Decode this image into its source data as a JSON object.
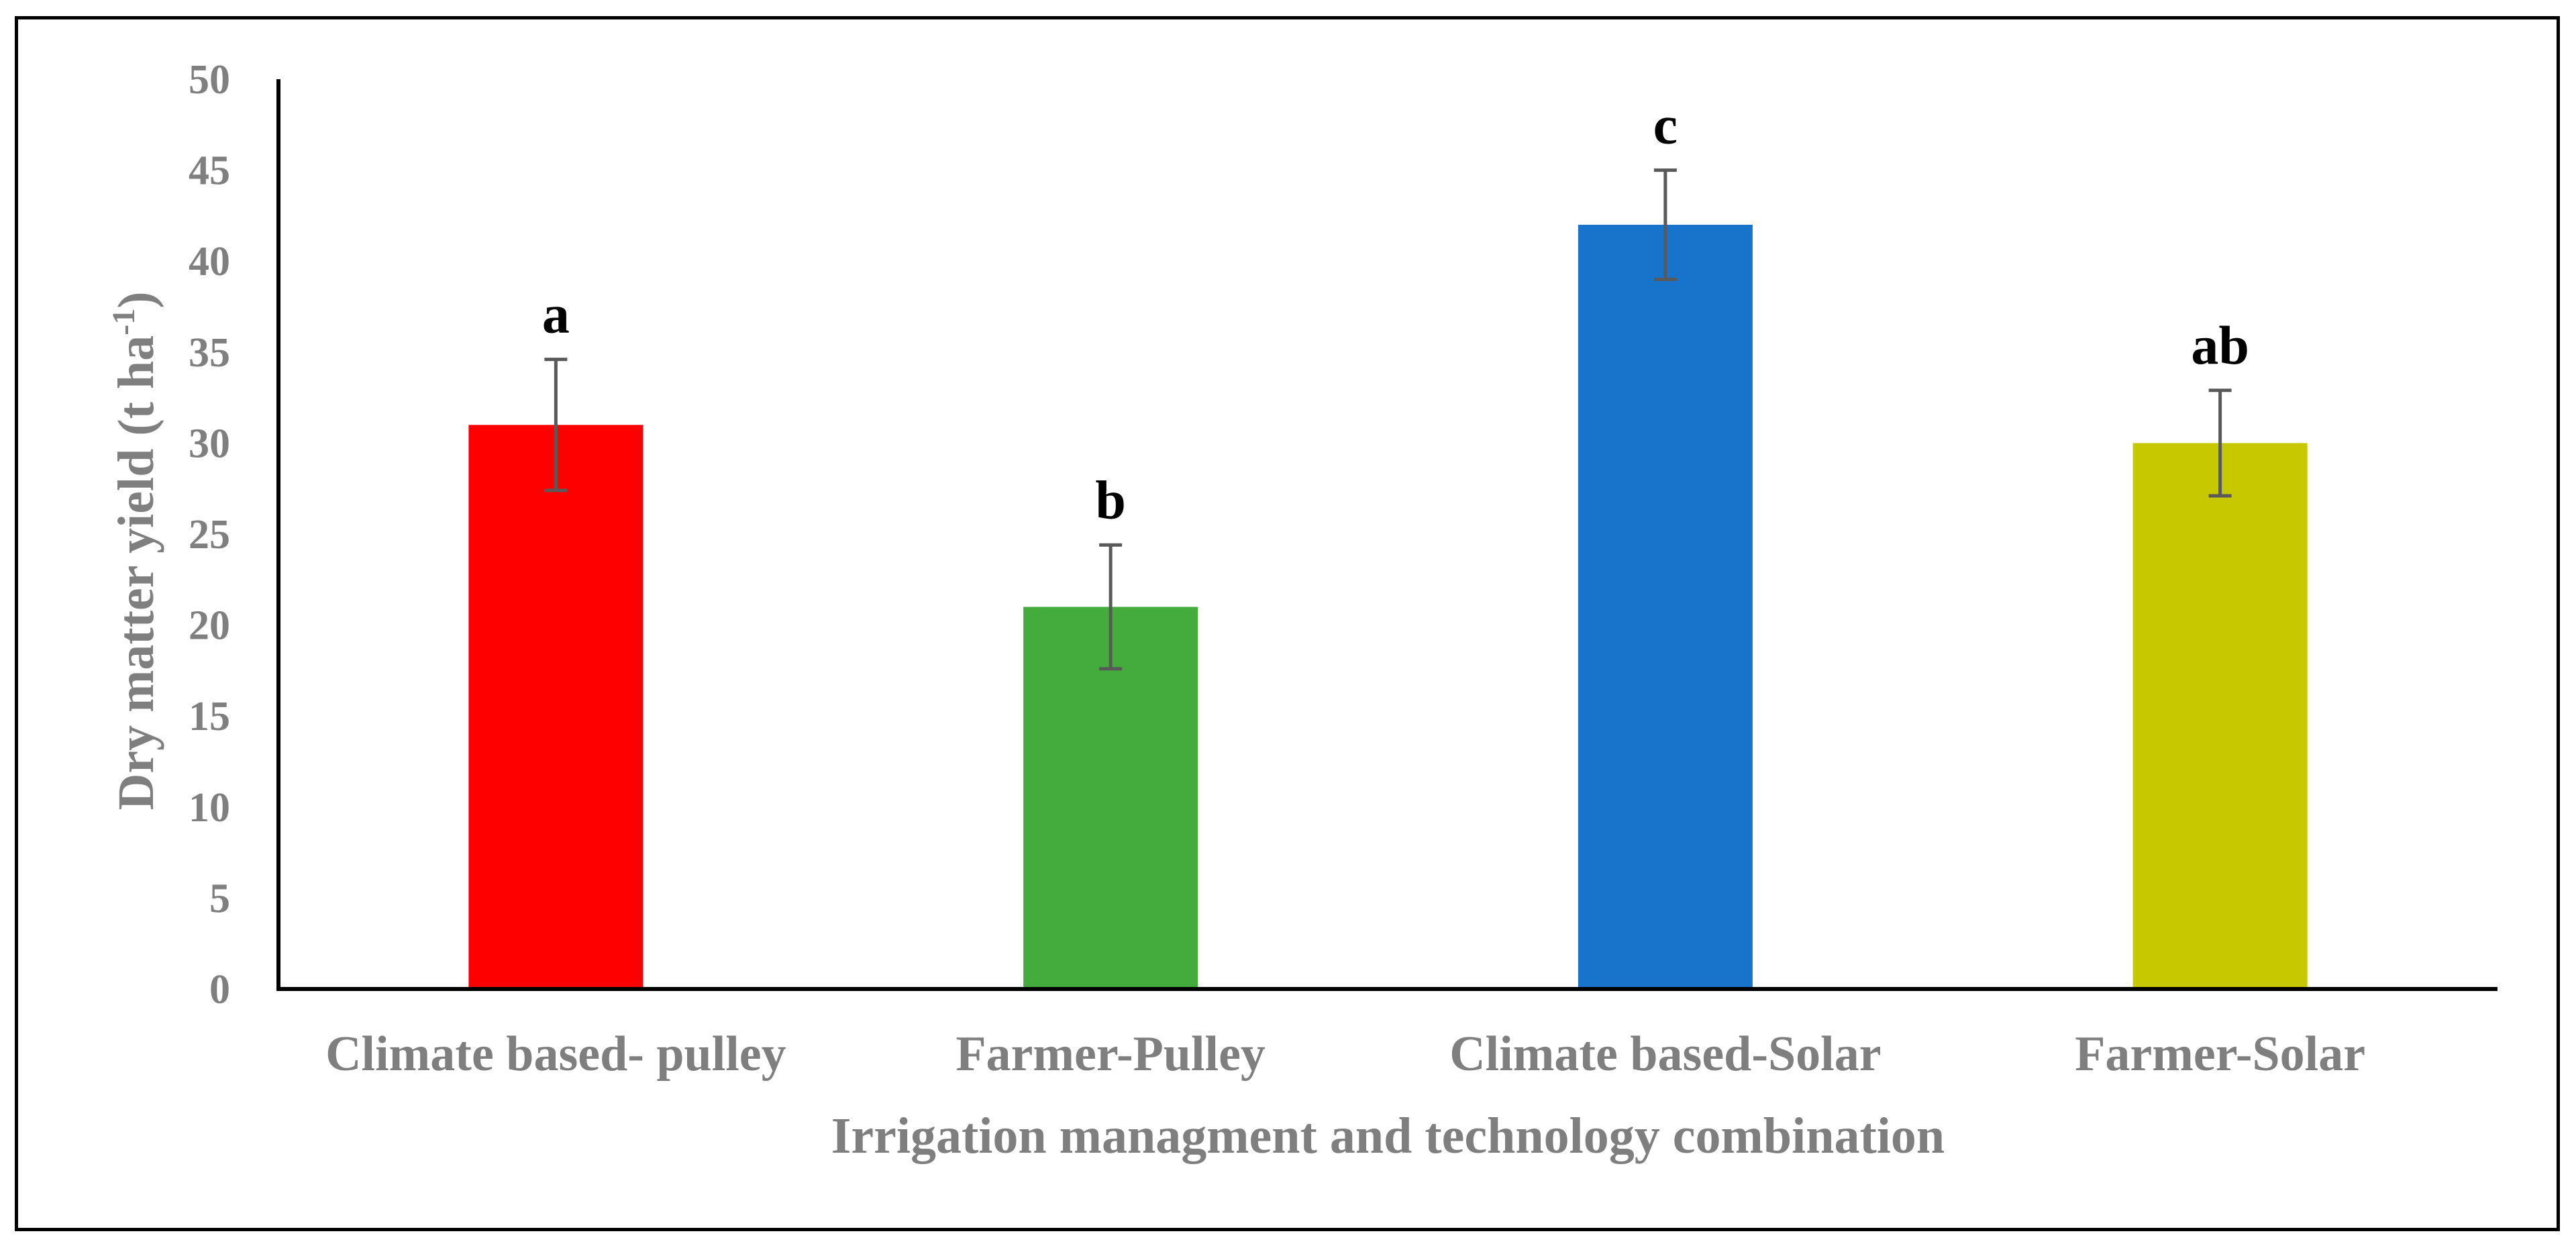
{
  "chart_data": {
    "type": "bar",
    "title": "",
    "xlabel": "Irrigation managment and technology combination",
    "ylabel": {
      "main": "Dry matter yield (t ha",
      "superscript": "-1",
      "close": ")"
    },
    "categories": [
      "Climate based- pulley",
      "Farmer-Pulley",
      "Climate based-Solar",
      "Farmer-Solar"
    ],
    "values": [
      31,
      21,
      42,
      30
    ],
    "error_bars": [
      3.6,
      3.4,
      3.0,
      2.9
    ],
    "significance_labels": [
      "a",
      "b",
      "c",
      "ab"
    ],
    "colors": [
      "#ff0000",
      "#43ac3c",
      "#1873cb",
      "#c8c800"
    ],
    "ylim": [
      0,
      50
    ],
    "yticks": [
      0,
      5,
      10,
      15,
      20,
      25,
      30,
      35,
      40,
      45,
      50
    ],
    "grid": false,
    "legend": "none"
  }
}
